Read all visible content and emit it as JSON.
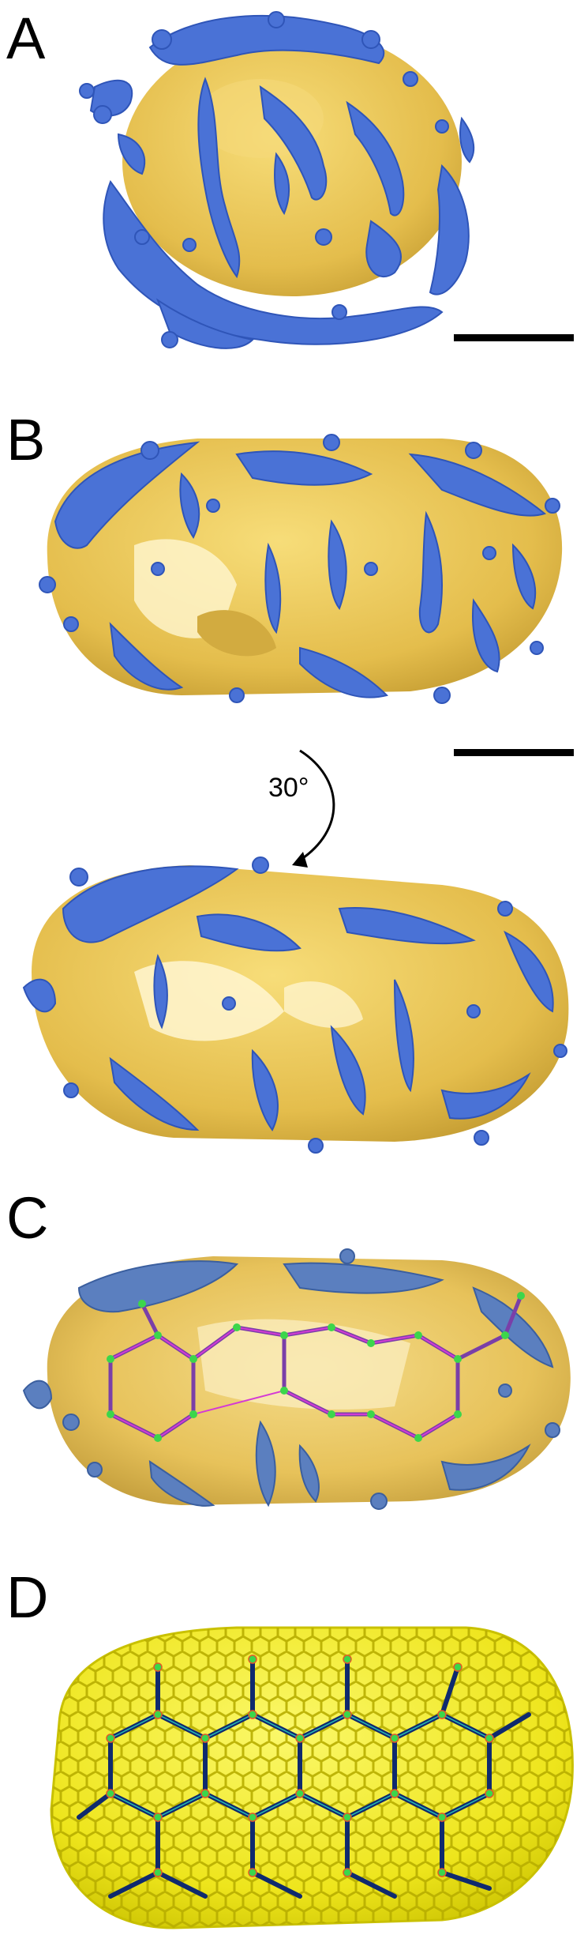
{
  "panels": {
    "a": {
      "letter": "A"
    },
    "b": {
      "letter": "B",
      "rotation_label": "30°"
    },
    "c": {
      "letter": "C"
    },
    "d": {
      "letter": "D"
    }
  },
  "colors": {
    "capsid_yellow": "#e9c452",
    "capsid_shade": "#c9a23a",
    "density_blue": "#4a72d6",
    "density_blue_dark": "#2f55b8",
    "steel_blue": "#5b7fbf",
    "lattice_yellow": "#f2ee1c",
    "lattice_stroke": "#b9b400",
    "magenta_link": "#d43ad4",
    "green_node": "#3cd64b",
    "navy_link": "#0f2a6e"
  }
}
